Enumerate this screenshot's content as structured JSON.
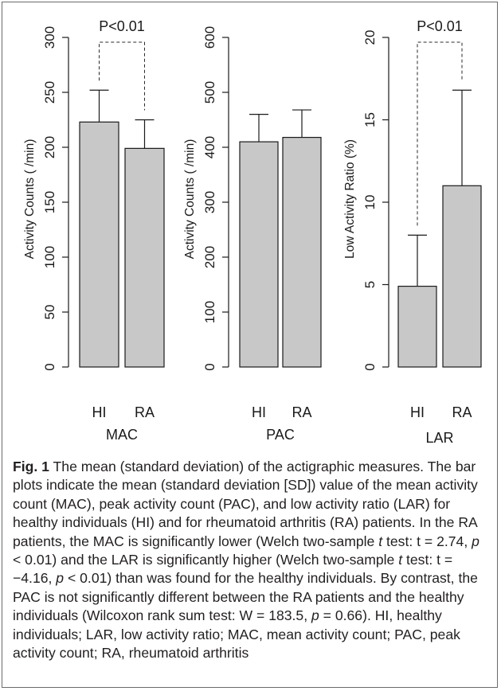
{
  "caption": {
    "label": "Fig. 1",
    "title": "The mean (standard deviation) of the actigraphic measures.",
    "s1": "The bar plots indicate the mean (standard deviation [SD]) value of the mean activity count (MAC), peak activity count (PAC), and low activity ratio (LAR) for healthy individuals (HI) and for rheumatoid arthritis (RA) patients. In the RA patients, the MAC is significantly lower (Welch two-sample ",
    "t1": "t",
    "s2": " test: t = 2.74, ",
    "p1": "p",
    "s3": " < 0.01) and the LAR is significantly higher (Welch two-sample ",
    "t2": "t",
    "s4": " test: t = −4.16, ",
    "p2": "p",
    "s5": " < 0.01) than was found for the healthy individuals. By contrast, the PAC is not significantly different between the RA patients and the healthy individuals (Wilcoxon rank sum test: W = 183.5, ",
    "p3": "p",
    "s6": " = 0.66). HI, healthy individuals; LAR, low activity ratio; MAC, mean activity count; PAC, peak activity count; RA, rheumatoid arthritis"
  },
  "chart_data": [
    {
      "type": "bar",
      "categories": [
        "HI",
        "RA"
      ],
      "values": [
        223,
        199
      ],
      "sd": [
        29,
        26
      ],
      "xlabel": "MAC",
      "ylabel": "Activity Counts ( /min)",
      "ylim": [
        0,
        300
      ],
      "yticks": [
        0,
        50,
        100,
        150,
        200,
        250,
        300
      ],
      "significance": "P<0.01",
      "grid": false
    },
    {
      "type": "bar",
      "categories": [
        "HI",
        "RA"
      ],
      "values": [
        410,
        418
      ],
      "sd": [
        50,
        50
      ],
      "xlabel": "PAC",
      "ylabel": "Activity Counts ( /min)",
      "ylim": [
        0,
        600
      ],
      "yticks": [
        0,
        100,
        200,
        300,
        400,
        500,
        600
      ],
      "grid": false
    },
    {
      "type": "bar",
      "categories": [
        "HI",
        "RA"
      ],
      "values": [
        4.9,
        11.0
      ],
      "sd": [
        3.1,
        5.8
      ],
      "xlabel": "LAR",
      "ylabel": "Low Activity Ratio (%)",
      "ylim": [
        0,
        20
      ],
      "yticks": [
        0,
        5,
        10,
        15,
        20
      ],
      "significance": "P<0.01",
      "grid": false
    }
  ],
  "colors": {
    "bar_fill": "#c8c8c8",
    "stroke": "#1a1a1a",
    "frame": "#6b6b6b"
  }
}
